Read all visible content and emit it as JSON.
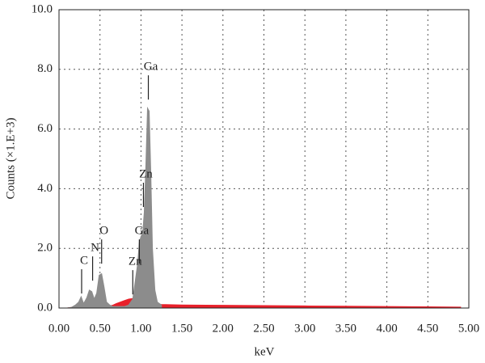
{
  "chart_data": {
    "type": "area",
    "xlabel": "keV",
    "ylabel": "Counts (×1.E+3)",
    "x": [
      0.1,
      0.15,
      0.2,
      0.24,
      0.27,
      0.3,
      0.34,
      0.37,
      0.4,
      0.43,
      0.46,
      0.49,
      0.52,
      0.55,
      0.58,
      0.62,
      0.66,
      0.7,
      0.75,
      0.8,
      0.85,
      0.9,
      0.93,
      0.96,
      0.98,
      1.0,
      1.02,
      1.04,
      1.06,
      1.08,
      1.1,
      1.12,
      1.14,
      1.17,
      1.2,
      1.25,
      1.5,
      2.0,
      2.5,
      3.0,
      3.5,
      4.0,
      4.5,
      4.9
    ],
    "series": [
      {
        "color": "#e8202a",
        "values": [
          0,
          0.02,
          0.04,
          0.05,
          0.06,
          0.06,
          0.06,
          0.06,
          0.06,
          0.06,
          0.06,
          0.06,
          0.06,
          0.06,
          0.06,
          0.07,
          0.1,
          0.15,
          0.2,
          0.25,
          0.3,
          0.32,
          0.33,
          0.34,
          0.34,
          0.34,
          0.33,
          0.32,
          0.3,
          0.28,
          0.25,
          0.2,
          0.16,
          0.14,
          0.13,
          0.12,
          0.1,
          0.09,
          0.08,
          0.07,
          0.06,
          0.05,
          0.04,
          0.03
        ]
      },
      {
        "color": "#8c8c8c",
        "values": [
          0,
          0.02,
          0.1,
          0.2,
          0.38,
          0.15,
          0.35,
          0.6,
          0.55,
          0.3,
          0.5,
          1.1,
          1.15,
          0.7,
          0.2,
          0.1,
          0.05,
          0.05,
          0.05,
          0.05,
          0.1,
          0.3,
          0.9,
          1.5,
          2.2,
          2.4,
          2.5,
          3.2,
          4.8,
          6.7,
          6.6,
          4.5,
          2.0,
          0.6,
          0.2,
          0.1,
          null,
          null,
          null,
          null,
          null,
          null,
          null,
          null
        ]
      }
    ],
    "annotations": [
      {
        "text": "C",
        "x": 0.276,
        "y": 1.3
      },
      {
        "text": "N",
        "x": 0.41,
        "y": 1.73
      },
      {
        "text": "O",
        "x": 0.52,
        "y": 2.3
      },
      {
        "text": "Zn",
        "x": 0.9,
        "y": 1.27
      },
      {
        "text": "Ga",
        "x": 0.98,
        "y": 2.3
      },
      {
        "text": "Zn",
        "x": 1.03,
        "y": 4.2
      },
      {
        "text": "Ga",
        "x": 1.09,
        "y": 7.8
      }
    ],
    "xlim": [
      0,
      5
    ],
    "ylim": [
      0,
      10
    ],
    "xticks": [
      {
        "value": 0,
        "label": "0.00"
      },
      {
        "value": 0.5,
        "label": "0.50"
      },
      {
        "value": 1,
        "label": "1.00"
      },
      {
        "value": 1.5,
        "label": "1.50"
      },
      {
        "value": 2,
        "label": "2.00"
      },
      {
        "value": 2.5,
        "label": "2.50"
      },
      {
        "value": 3,
        "label": "3.00"
      },
      {
        "value": 3.5,
        "label": "3.50"
      },
      {
        "value": 4,
        "label": "4.00"
      },
      {
        "value": 4.5,
        "label": "4.50"
      },
      {
        "value": 5,
        "label": "5.00"
      }
    ],
    "yticks": [
      {
        "value": 0,
        "label": "0.0"
      },
      {
        "value": 2,
        "label": "2.0"
      },
      {
        "value": 4,
        "label": "4.0"
      },
      {
        "value": 6,
        "label": "6.0"
      },
      {
        "value": 8,
        "label": "8.0"
      },
      {
        "value": 10,
        "label": "10.0"
      }
    ],
    "grid": true
  }
}
